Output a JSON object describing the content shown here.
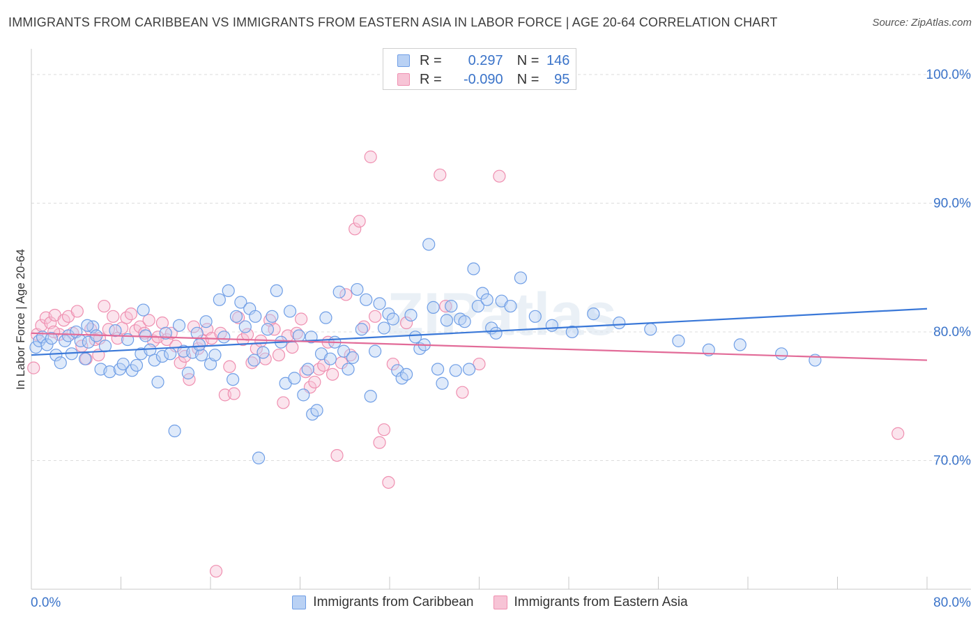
{
  "title": "IMMIGRANTS FROM CARIBBEAN VS IMMIGRANTS FROM EASTERN ASIA IN LABOR FORCE | AGE 20-64 CORRELATION CHART",
  "source": "Source: ZipAtlas.com",
  "watermark": "ZIPatlas",
  "legend": {
    "r_label": "R =",
    "n_label": "N =",
    "rows": [
      {
        "r": "0.297",
        "n": "146",
        "color": "#6f9ee6"
      },
      {
        "r": "-0.090",
        "n": "95",
        "color": "#ef8fb0"
      }
    ]
  },
  "chart_data": {
    "type": "scatter",
    "ylabel": "In Labor Force | Age 20-64",
    "xlabel": "",
    "xlim": [
      0,
      80
    ],
    "ylim": [
      60,
      102
    ],
    "x_tick_labels": [
      "0.0%",
      "80.0%"
    ],
    "y_tick_labels": [
      {
        "value": 100,
        "label": "100.0%"
      },
      {
        "value": 90,
        "label": "90.0%"
      },
      {
        "value": 80,
        "label": "80.0%"
      },
      {
        "value": 70,
        "label": "70.0%"
      }
    ],
    "grid": "horizontal dashed",
    "series": [
      {
        "name": "Immigrants from Caribbean",
        "color": "#6f9ee6",
        "fill": "#b9d1f4",
        "trend": {
          "x": [
            0,
            80
          ],
          "y": [
            78.2,
            81.8
          ]
        },
        "points": [
          [
            0.4,
            78.8
          ],
          [
            0.7,
            79.3
          ],
          [
            1.0,
            79.6
          ],
          [
            1.4,
            79.0
          ],
          [
            1.8,
            79.5
          ],
          [
            2.2,
            78.2
          ],
          [
            2.6,
            77.6
          ],
          [
            3.0,
            79.3
          ],
          [
            3.3,
            79.7
          ],
          [
            3.6,
            78.3
          ],
          [
            4.0,
            80.0
          ],
          [
            4.4,
            79.3
          ],
          [
            4.8,
            77.9
          ],
          [
            5.1,
            79.2
          ],
          [
            5.5,
            80.4
          ],
          [
            5.8,
            79.7
          ],
          [
            6.2,
            77.1
          ],
          [
            6.6,
            78.9
          ],
          [
            7.0,
            76.9
          ],
          [
            7.5,
            80.1
          ],
          [
            7.9,
            77.1
          ],
          [
            8.2,
            77.5
          ],
          [
            8.6,
            79.4
          ],
          [
            9.0,
            77.0
          ],
          [
            9.4,
            77.4
          ],
          [
            9.8,
            78.3
          ],
          [
            10.2,
            79.7
          ],
          [
            10.6,
            78.6
          ],
          [
            11.0,
            77.8
          ],
          [
            11.3,
            76.1
          ],
          [
            11.7,
            78.1
          ],
          [
            12.0,
            79.9
          ],
          [
            12.4,
            78.3
          ],
          [
            12.8,
            72.3
          ],
          [
            13.2,
            80.5
          ],
          [
            13.6,
            78.5
          ],
          [
            14.0,
            76.8
          ],
          [
            14.4,
            78.4
          ],
          [
            14.8,
            79.9
          ],
          [
            15.2,
            78.2
          ],
          [
            15.6,
            80.8
          ],
          [
            16.0,
            77.5
          ],
          [
            16.4,
            78.2
          ],
          [
            16.8,
            82.5
          ],
          [
            17.2,
            79.6
          ],
          [
            17.6,
            83.2
          ],
          [
            18.0,
            76.3
          ],
          [
            18.3,
            81.2
          ],
          [
            18.7,
            82.3
          ],
          [
            19.1,
            80.4
          ],
          [
            19.5,
            81.8
          ],
          [
            19.9,
            77.8
          ],
          [
            20.3,
            70.2
          ],
          [
            20.7,
            78.4
          ],
          [
            21.1,
            80.2
          ],
          [
            21.5,
            81.2
          ],
          [
            21.9,
            83.2
          ],
          [
            22.3,
            79.2
          ],
          [
            22.7,
            76.0
          ],
          [
            23.1,
            81.6
          ],
          [
            23.5,
            76.4
          ],
          [
            23.9,
            79.7
          ],
          [
            24.3,
            75.1
          ],
          [
            24.7,
            77.1
          ],
          [
            25.1,
            73.6
          ],
          [
            25.5,
            73.9
          ],
          [
            25.9,
            78.3
          ],
          [
            26.3,
            81.1
          ],
          [
            26.7,
            77.9
          ],
          [
            27.1,
            79.2
          ],
          [
            27.5,
            83.1
          ],
          [
            27.9,
            78.5
          ],
          [
            28.3,
            77.1
          ],
          [
            28.7,
            78.0
          ],
          [
            29.1,
            83.3
          ],
          [
            29.5,
            80.2
          ],
          [
            29.9,
            82.5
          ],
          [
            30.3,
            75.0
          ],
          [
            30.7,
            78.5
          ],
          [
            31.1,
            82.2
          ],
          [
            31.5,
            80.3
          ],
          [
            31.9,
            81.4
          ],
          [
            32.3,
            81.0
          ],
          [
            32.7,
            77.0
          ],
          [
            33.1,
            76.4
          ],
          [
            33.5,
            76.7
          ],
          [
            33.9,
            81.3
          ],
          [
            34.3,
            79.6
          ],
          [
            34.7,
            78.7
          ],
          [
            35.1,
            79.0
          ],
          [
            35.5,
            86.8
          ],
          [
            35.9,
            81.9
          ],
          [
            36.3,
            77.1
          ],
          [
            36.7,
            76.0
          ],
          [
            37.1,
            80.9
          ],
          [
            37.5,
            82.0
          ],
          [
            37.9,
            77.0
          ],
          [
            38.3,
            81.0
          ],
          [
            38.7,
            80.8
          ],
          [
            39.1,
            77.1
          ],
          [
            39.5,
            84.9
          ],
          [
            39.9,
            82.0
          ],
          [
            40.3,
            83.0
          ],
          [
            40.7,
            82.5
          ],
          [
            41.1,
            80.3
          ],
          [
            41.5,
            79.9
          ],
          [
            42.0,
            82.4
          ],
          [
            42.8,
            82.0
          ],
          [
            43.7,
            84.2
          ],
          [
            45.0,
            81.2
          ],
          [
            46.5,
            80.5
          ],
          [
            48.3,
            80.0
          ],
          [
            50.2,
            81.4
          ],
          [
            52.5,
            80.7
          ],
          [
            55.3,
            80.2
          ],
          [
            57.8,
            79.3
          ],
          [
            60.5,
            78.6
          ],
          [
            63.3,
            79.0
          ],
          [
            67.0,
            78.3
          ],
          [
            70.0,
            77.8
          ],
          [
            25.0,
            79.6
          ],
          [
            20.0,
            81.2
          ],
          [
            15.0,
            79.0
          ],
          [
            10.0,
            81.7
          ],
          [
            5.0,
            80.5
          ]
        ]
      },
      {
        "name": "Immigrants from Eastern Asia",
        "color": "#ef8fb0",
        "fill": "#f7c4d6",
        "trend": {
          "x": [
            0,
            80
          ],
          "y": [
            79.9,
            77.8
          ]
        },
        "points": [
          [
            0.2,
            77.2
          ],
          [
            0.5,
            79.8
          ],
          [
            0.9,
            80.5
          ],
          [
            1.3,
            81.1
          ],
          [
            1.7,
            80.7
          ],
          [
            2.1,
            81.3
          ],
          [
            2.5,
            79.8
          ],
          [
            2.9,
            80.9
          ],
          [
            3.3,
            81.2
          ],
          [
            3.7,
            79.9
          ],
          [
            4.1,
            81.6
          ],
          [
            4.5,
            78.9
          ],
          [
            4.9,
            77.9
          ],
          [
            5.3,
            80.2
          ],
          [
            5.7,
            79.4
          ],
          [
            6.1,
            79.5
          ],
          [
            6.5,
            82.0
          ],
          [
            6.9,
            80.2
          ],
          [
            7.3,
            81.2
          ],
          [
            7.7,
            79.5
          ],
          [
            8.1,
            80.3
          ],
          [
            8.5,
            81.1
          ],
          [
            8.9,
            81.4
          ],
          [
            9.3,
            80.1
          ],
          [
            9.7,
            80.4
          ],
          [
            10.1,
            79.9
          ],
          [
            10.5,
            80.9
          ],
          [
            10.9,
            79.3
          ],
          [
            11.3,
            79.6
          ],
          [
            11.7,
            80.7
          ],
          [
            12.1,
            79.4
          ],
          [
            12.5,
            79.9
          ],
          [
            12.9,
            78.9
          ],
          [
            13.3,
            77.6
          ],
          [
            13.7,
            78.1
          ],
          [
            14.1,
            76.3
          ],
          [
            14.5,
            80.4
          ],
          [
            14.9,
            78.7
          ],
          [
            15.3,
            79.3
          ],
          [
            15.7,
            80.2
          ],
          [
            16.1,
            79.5
          ],
          [
            16.5,
            61.4
          ],
          [
            16.9,
            79.9
          ],
          [
            17.3,
            75.1
          ],
          [
            17.7,
            77.3
          ],
          [
            18.1,
            75.2
          ],
          [
            18.5,
            81.1
          ],
          [
            18.9,
            79.4
          ],
          [
            19.3,
            79.8
          ],
          [
            19.7,
            77.6
          ],
          [
            20.1,
            78.7
          ],
          [
            20.5,
            79.3
          ],
          [
            20.9,
            77.9
          ],
          [
            21.3,
            80.9
          ],
          [
            21.7,
            80.2
          ],
          [
            22.1,
            78.2
          ],
          [
            22.5,
            74.5
          ],
          [
            22.9,
            79.7
          ],
          [
            23.3,
            78.8
          ],
          [
            23.7,
            79.9
          ],
          [
            24.1,
            81.0
          ],
          [
            24.5,
            76.9
          ],
          [
            24.9,
            75.7
          ],
          [
            25.3,
            76.1
          ],
          [
            25.7,
            77.1
          ],
          [
            26.1,
            77.4
          ],
          [
            26.5,
            79.2
          ],
          [
            26.9,
            76.7
          ],
          [
            27.3,
            70.4
          ],
          [
            27.7,
            77.6
          ],
          [
            28.1,
            82.9
          ],
          [
            28.5,
            78.2
          ],
          [
            28.9,
            88.0
          ],
          [
            29.3,
            88.6
          ],
          [
            29.7,
            80.4
          ],
          [
            30.3,
            93.6
          ],
          [
            30.7,
            81.2
          ],
          [
            31.1,
            71.4
          ],
          [
            31.5,
            72.4
          ],
          [
            31.9,
            68.3
          ],
          [
            32.3,
            77.5
          ],
          [
            33.5,
            80.7
          ],
          [
            36.5,
            92.2
          ],
          [
            37.0,
            82.0
          ],
          [
            38.5,
            75.3
          ],
          [
            40.0,
            77.5
          ],
          [
            41.8,
            92.1
          ],
          [
            77.4,
            72.1
          ],
          [
            6.0,
            78.2
          ],
          [
            2.0,
            80.0
          ]
        ]
      }
    ]
  }
}
